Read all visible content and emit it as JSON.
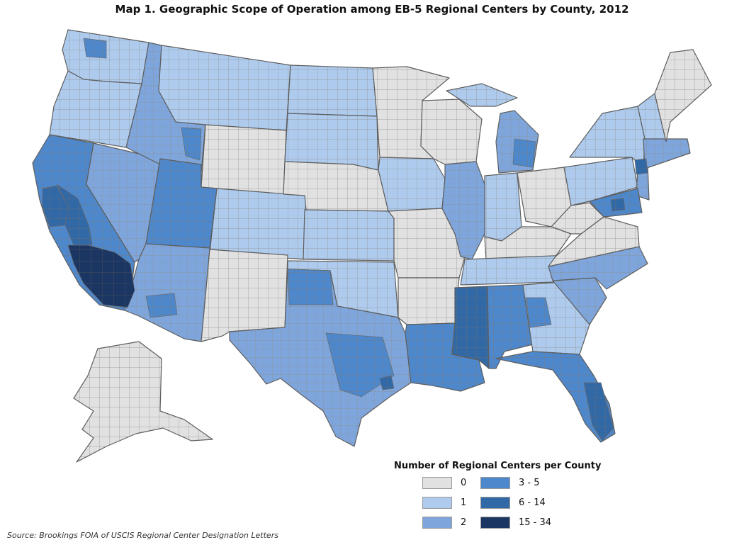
{
  "title": "Map 1. Geographic Scope of Operation among EB-5 Regional Centers by County, 2012",
  "legend": {
    "title": "Number of Regional Centers per County",
    "items": [
      {
        "label": "0",
        "color": "#e1e1e1"
      },
      {
        "label": "1",
        "color": "#aecbee"
      },
      {
        "label": "2",
        "color": "#7ea6dd"
      },
      {
        "label": "3 - 5",
        "color": "#4d88cd"
      },
      {
        "label": "6 - 14",
        "color": "#3168a6"
      },
      {
        "label": "15 - 34",
        "color": "#1b3663"
      }
    ]
  },
  "source": "Source: Brookings FOIA of USCIS Regional Center Designation Letters",
  "colors": {
    "county_border": "#8f8f8f",
    "state_border": "#5e5e5e"
  }
}
